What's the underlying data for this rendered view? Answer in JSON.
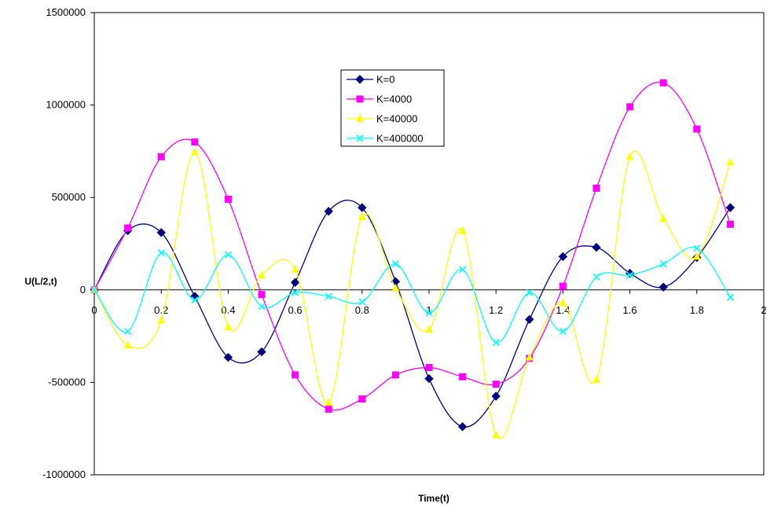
{
  "chart_data": {
    "type": "line",
    "title": "",
    "xlabel": "Time(t)",
    "ylabel": "U(L/2,t)",
    "xlim": [
      0,
      2
    ],
    "ylim": [
      -1000000,
      1500000
    ],
    "x_ticks": [
      "0",
      "0.2",
      "0.4",
      "0.6",
      "0.8",
      "1",
      "1.2",
      "1.4",
      "1.6",
      "1.8",
      "2"
    ],
    "y_ticks": [
      "-1000000",
      "-500000",
      "0",
      "500000",
      "1000000",
      "1500000"
    ],
    "grid": false,
    "smoothed": true,
    "legend_position": "upper-center",
    "x": [
      0,
      0.1,
      0.2,
      0.3,
      0.4,
      0.5,
      0.6,
      0.7,
      0.8,
      0.9,
      1.0,
      1.1,
      1.2,
      1.3,
      1.4,
      1.5,
      1.6,
      1.7,
      1.8,
      1.9
    ],
    "series": [
      {
        "name": "K=0",
        "color": "#000080",
        "marker": "diamond",
        "values": [
          0,
          320000,
          310000,
          -35000,
          -365000,
          -335000,
          40000,
          425000,
          445000,
          45000,
          -480000,
          -740000,
          -575000,
          -160000,
          180000,
          230000,
          90000,
          15000,
          175000,
          445000
        ]
      },
      {
        "name": "K=4000",
        "color": "#FF00FF",
        "marker": "square",
        "values": [
          0,
          335000,
          720000,
          800000,
          490000,
          -25000,
          -460000,
          -645000,
          -590000,
          -460000,
          -420000,
          -470000,
          -510000,
          -370000,
          20000,
          550000,
          990000,
          1120000,
          870000,
          355000
        ]
      },
      {
        "name": "K=40000",
        "color": "#FFFF00",
        "marker": "triangle",
        "values": [
          0,
          -300000,
          -165000,
          745000,
          -200000,
          80000,
          110000,
          -610000,
          395000,
          10000,
          -215000,
          320000,
          -785000,
          -365000,
          -70000,
          -485000,
          720000,
          385000,
          180000,
          690000
        ]
      },
      {
        "name": "K=400000",
        "color": "#00FFFF",
        "marker": "x",
        "values": [
          0,
          -225000,
          200000,
          -55000,
          190000,
          -90000,
          -15000,
          -35000,
          -65000,
          140000,
          -125000,
          110000,
          -285000,
          -15000,
          -225000,
          70000,
          80000,
          140000,
          225000,
          -40000
        ]
      }
    ]
  }
}
